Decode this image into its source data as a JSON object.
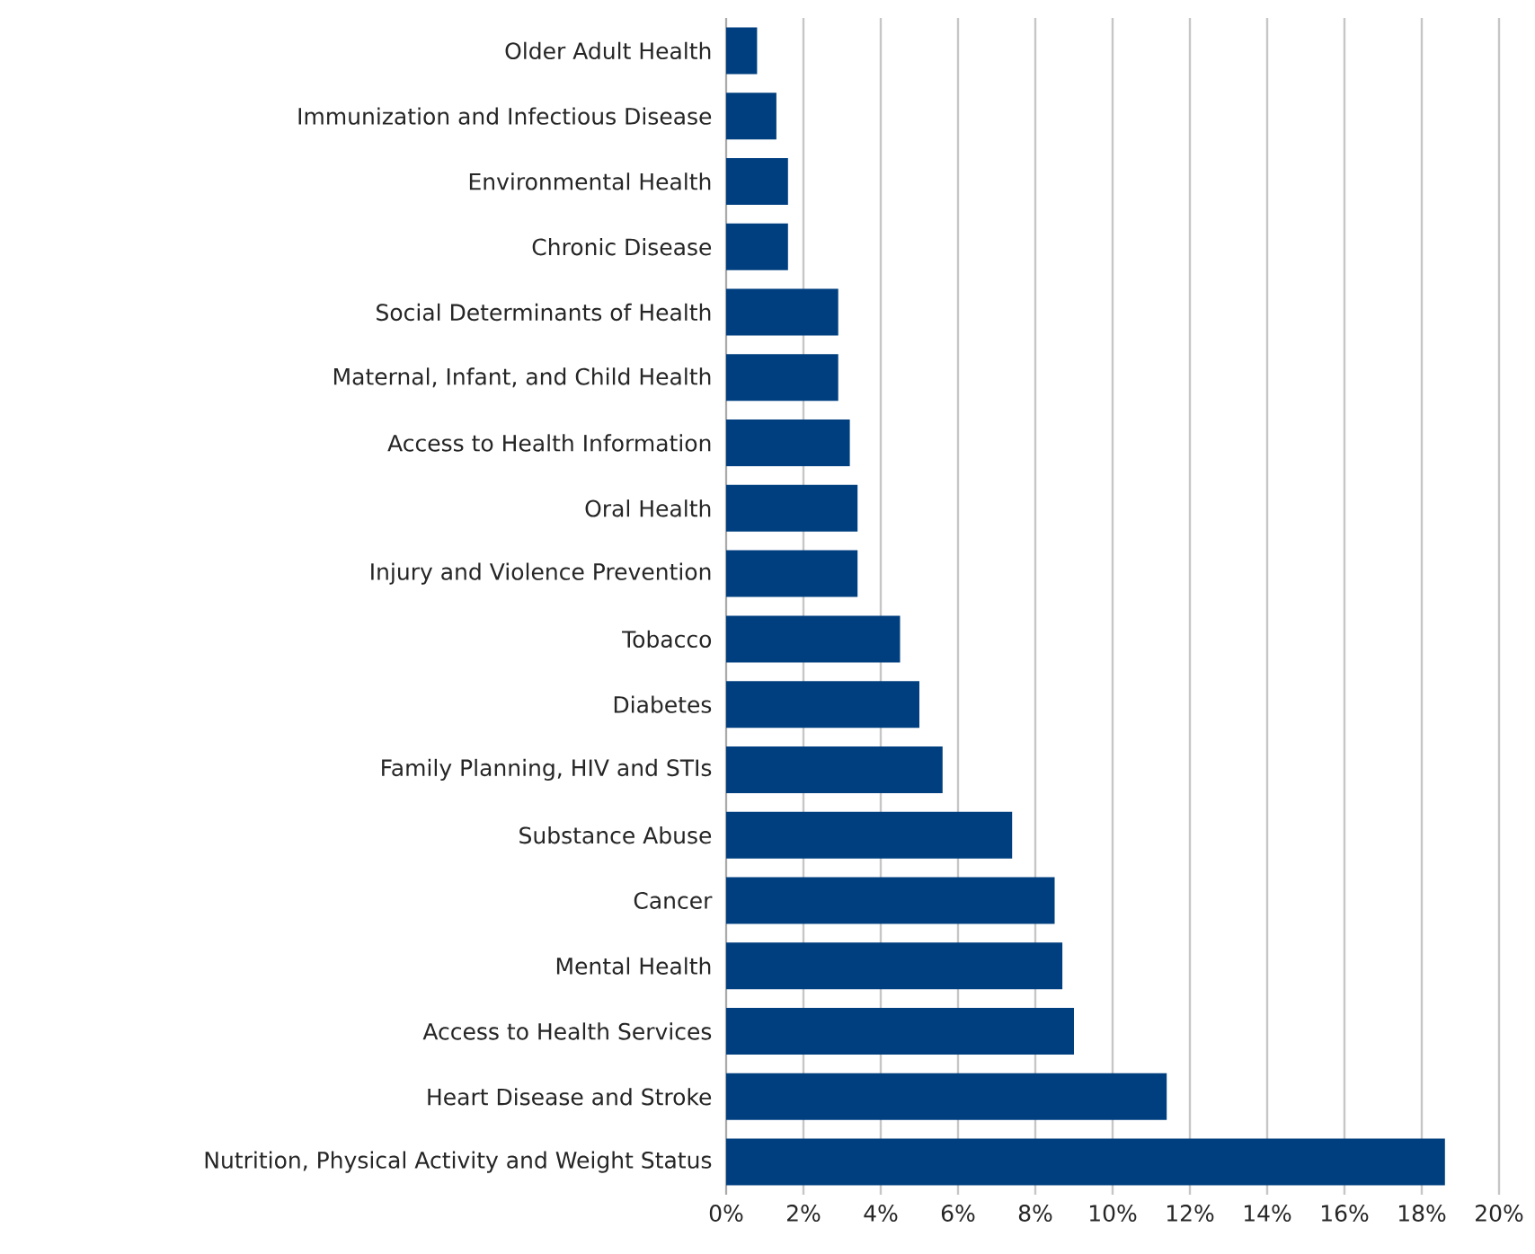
{
  "chart_data": {
    "type": "bar",
    "orientation": "horizontal",
    "categories": [
      "Older Adult Health",
      "Immunization and Infectious Disease",
      "Environmental Health",
      "Chronic Disease",
      "Social Determinants of Health",
      "Maternal, Infant, and Child Health",
      "Access to Health Information",
      "Oral Health",
      "Injury and Violence Prevention",
      "Tobacco",
      "Diabetes",
      "Family Planning, HIV and STIs",
      "Substance Abuse",
      "Cancer",
      "Mental Health",
      "Access to Health Services",
      "Heart Disease and Stroke",
      "Nutrition, Physical Activity and Weight Status"
    ],
    "values": [
      0.8,
      1.3,
      1.6,
      1.6,
      2.9,
      2.9,
      3.2,
      3.4,
      3.4,
      4.5,
      5.0,
      5.6,
      7.4,
      8.5,
      8.7,
      9.0,
      11.4,
      18.6
    ],
    "color": "#003f7f",
    "xlim": [
      0,
      20
    ],
    "xticks": [
      {
        "value": 0,
        "label": "0%"
      },
      {
        "value": 2,
        "label": "2%"
      },
      {
        "value": 4,
        "label": "4%"
      },
      {
        "value": 6,
        "label": "6%"
      },
      {
        "value": 8,
        "label": "8%"
      },
      {
        "value": 10,
        "label": "10%"
      },
      {
        "value": 12,
        "label": "12%"
      },
      {
        "value": 14,
        "label": "14%"
      },
      {
        "value": 16,
        "label": "16%"
      },
      {
        "value": 18,
        "label": "18%"
      },
      {
        "value": 20,
        "label": "20%"
      }
    ],
    "grid": "x"
  }
}
